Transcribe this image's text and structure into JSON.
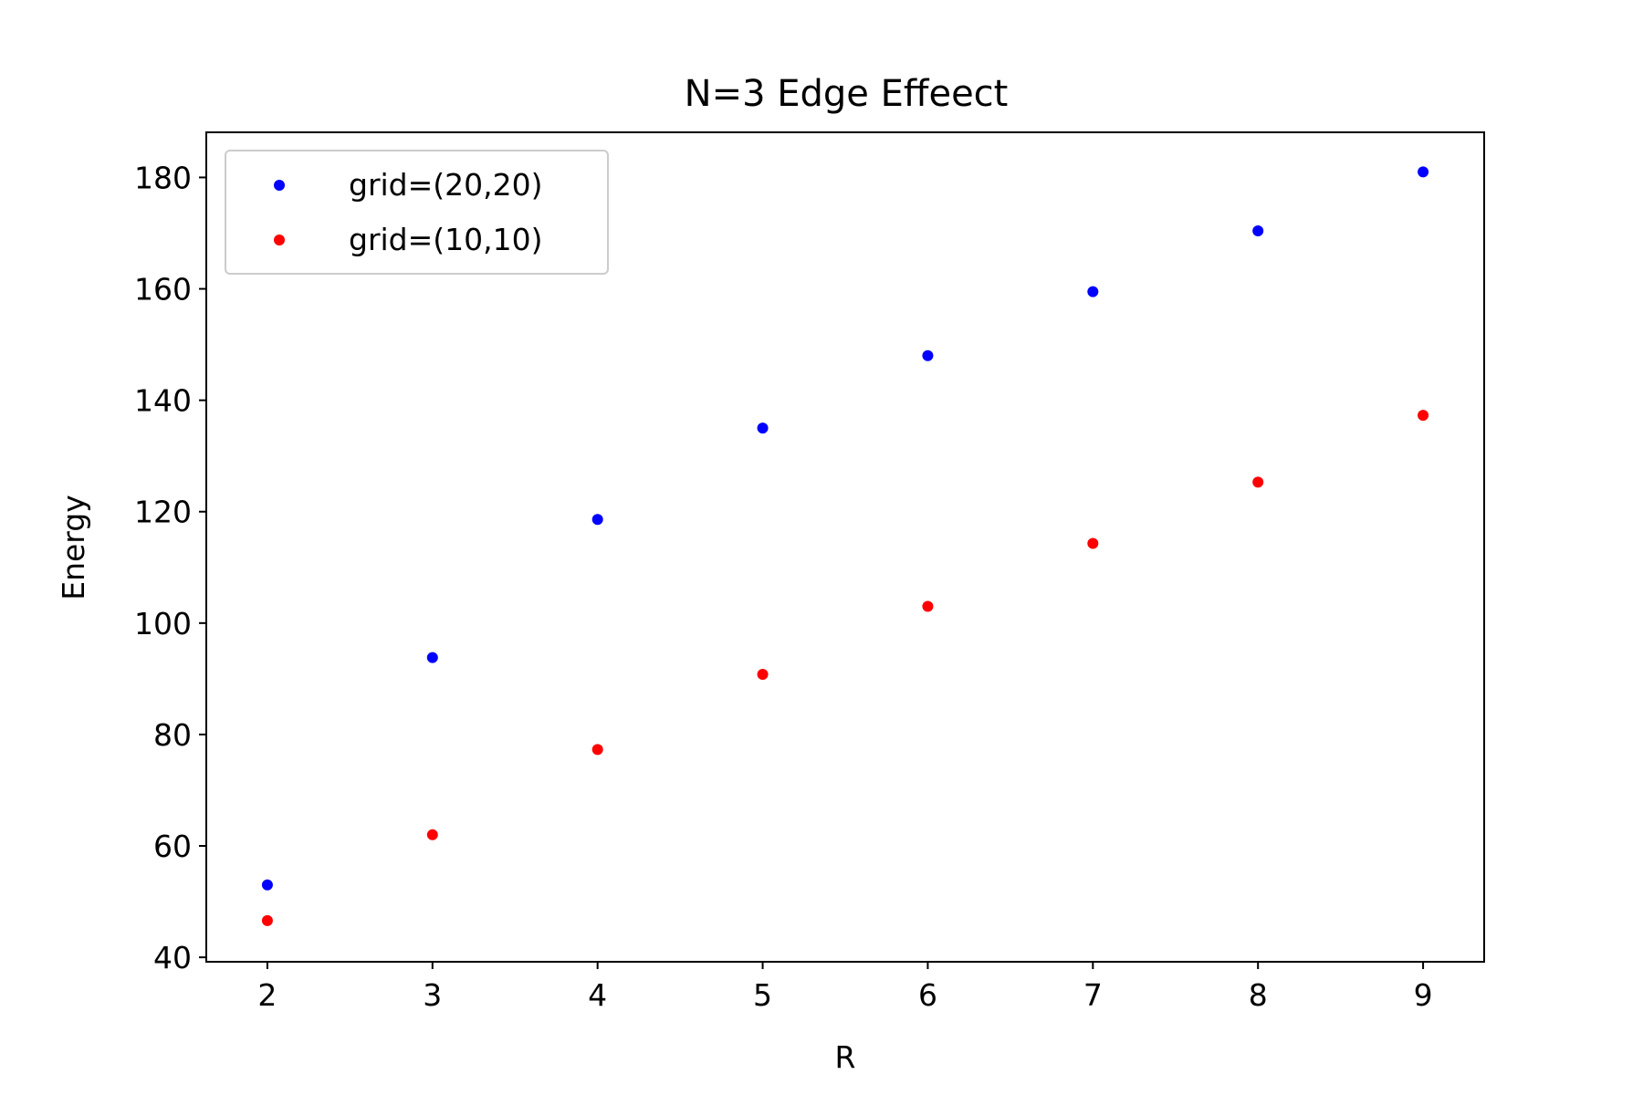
{
  "chart_data": {
    "type": "scatter",
    "title": "N=3 Edge Effeect",
    "xlabel": "R",
    "ylabel": "Energy",
    "xlim": [
      1.63,
      9.37
    ],
    "ylim": [
      39.2,
      188.1
    ],
    "xticks": [
      2,
      3,
      4,
      5,
      6,
      7,
      8,
      9
    ],
    "yticks": [
      40,
      60,
      80,
      100,
      120,
      140,
      160,
      180
    ],
    "grid": false,
    "legend_position": "top-left",
    "series": [
      {
        "name": "grid=(20,20)",
        "color": "#0000ff",
        "x": [
          2,
          3,
          4,
          5,
          6,
          7,
          8,
          9
        ],
        "y": [
          53.0,
          93.8,
          118.6,
          135.0,
          148.0,
          159.5,
          170.4,
          181.0
        ]
      },
      {
        "name": "grid=(10,10)",
        "color": "#ff0000",
        "x": [
          2,
          3,
          4,
          5,
          6,
          7,
          8,
          9
        ],
        "y": [
          46.6,
          62.0,
          77.3,
          90.8,
          103.0,
          114.3,
          125.3,
          137.3
        ]
      }
    ]
  }
}
